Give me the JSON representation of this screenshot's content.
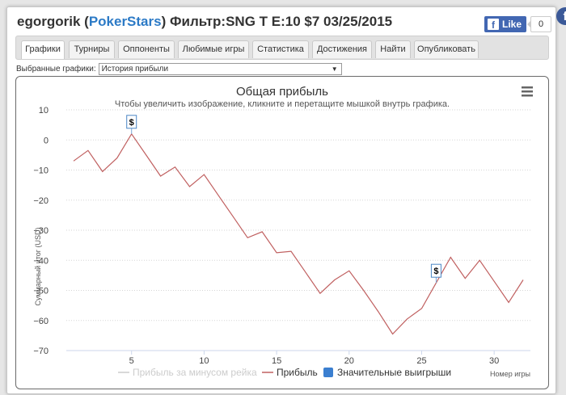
{
  "header": {
    "user": "egorgorik",
    "site": "PokerStars",
    "filter": "Фильтр:SNG T E:10 $7 03/25/2015",
    "like_label": "Like",
    "like_count": "0"
  },
  "tabs": [
    "Графики",
    "Турниры",
    "Оппоненты",
    "Любимые игры",
    "Статистика",
    "Достижения",
    "Найти",
    "Опубликовать"
  ],
  "selector": {
    "label": "Выбранные графики:",
    "value": "История прибыли"
  },
  "colors": {
    "profit_line": "#c06060",
    "rake_line": "#cccccc",
    "big_wins": "#3b7fd0",
    "grid": "#d6d6d6",
    "axis": "#ccd6eb"
  },
  "chart_data": {
    "type": "line",
    "title": "Общая прибыль",
    "subtitle": "Чтобы увеличить изображение, кликните и перетащите мышкой внутрь графика.",
    "ylabel": "Суммарный итог (USD)",
    "xlabel": "Номер игры",
    "ylim": [
      -70,
      10
    ],
    "y_ticks": [
      10,
      0,
      -10,
      -20,
      -30,
      -40,
      -50,
      -60,
      -70
    ],
    "x_ticks": [
      5,
      10,
      15,
      20,
      25,
      30
    ],
    "xlim": [
      0.5,
      32.5
    ],
    "grid": true,
    "legend_position": "bottom",
    "legend": [
      "Прибыль за минусом рейка",
      "Прибыль",
      "Значительные выигрыши"
    ],
    "series": [
      {
        "name": "Прибыль",
        "x": [
          1,
          2,
          3,
          4,
          5,
          6,
          7,
          8,
          9,
          10,
          11,
          12,
          13,
          14,
          15,
          16,
          17,
          18,
          19,
          20,
          21,
          22,
          23,
          24,
          25,
          26,
          27,
          28,
          29,
          30,
          31,
          32
        ],
        "values": [
          -7,
          -3.5,
          -10.5,
          -6,
          2,
          -5,
          -12,
          -9,
          -15.5,
          -11.5,
          -18.5,
          -25.5,
          -32.5,
          -30.5,
          -37.5,
          -37,
          -44,
          -51,
          -46.5,
          -43.5,
          -50,
          -57,
          -64.5,
          -59.5,
          -56,
          -47.5,
          -39,
          -46,
          -40,
          -47,
          -54,
          -46.5
        ]
      }
    ],
    "markers": [
      {
        "x": 5,
        "y": 2,
        "label": "$"
      },
      {
        "x": 26,
        "y": -47.5,
        "label": "$"
      }
    ]
  }
}
